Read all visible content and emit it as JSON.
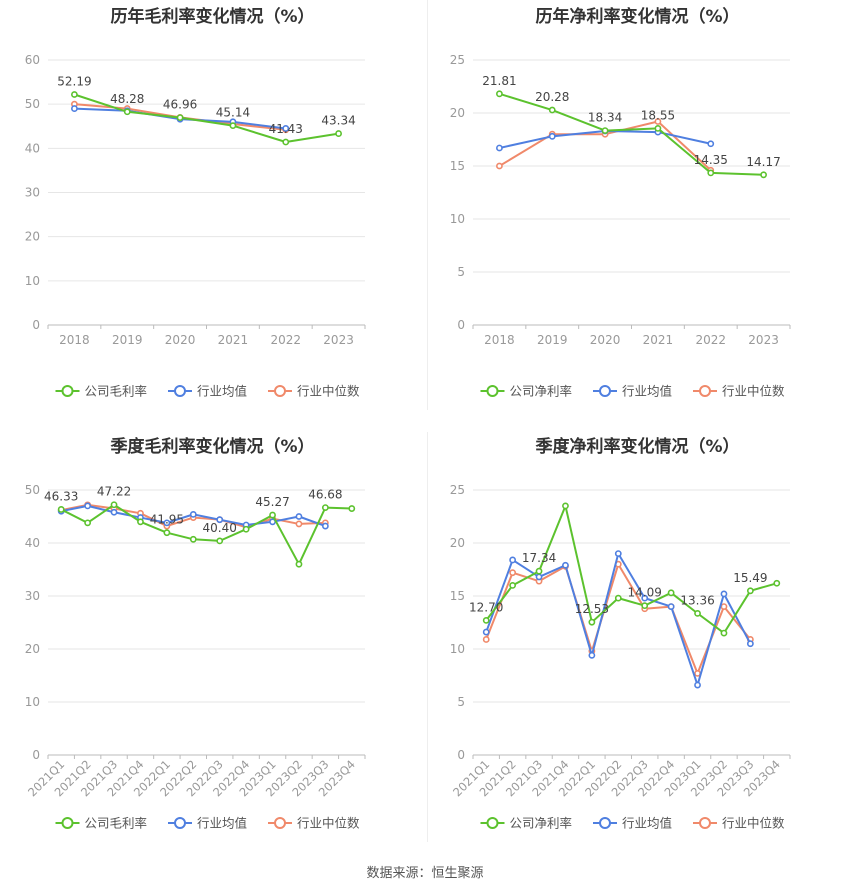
{
  "source": "数据来源：恒生聚源",
  "colors": {
    "company": "#5cc22e",
    "avg": "#4f7fe0",
    "median": "#f0896a",
    "grid": "#e6e6e6",
    "axis": "#999999",
    "label": "#444444"
  },
  "chart_data": [
    {
      "type": "line",
      "title": "历年毛利率变化情况（%）",
      "categories": [
        "2018",
        "2019",
        "2020",
        "2021",
        "2022",
        "2023"
      ],
      "ylim": [
        0,
        60
      ],
      "yticks": [
        0,
        10,
        20,
        30,
        40,
        50,
        60
      ],
      "rotate_labels": false,
      "legend_position": "bottom",
      "series": [
        {
          "name": "公司毛利率",
          "color": "#5cc22e",
          "values": [
            52.19,
            48.28,
            46.96,
            45.14,
            41.43,
            43.34
          ]
        },
        {
          "name": "行业均值",
          "color": "#4f7fe0",
          "values": [
            49.0,
            48.5,
            46.6,
            46.0,
            44.5,
            null
          ]
        },
        {
          "name": "行业中位数",
          "color": "#f0896a",
          "values": [
            50.0,
            49.0,
            47.0,
            45.5,
            44.2,
            null
          ]
        }
      ],
      "data_labels": [
        {
          "index": 0,
          "value": "52.19"
        },
        {
          "index": 1,
          "value": "48.28"
        },
        {
          "index": 2,
          "value": "46.96"
        },
        {
          "index": 3,
          "value": "45.14"
        },
        {
          "index": 4,
          "value": "41.43"
        },
        {
          "index": 5,
          "value": "43.34"
        }
      ]
    },
    {
      "type": "line",
      "title": "历年净利率变化情况（%）",
      "categories": [
        "2018",
        "2019",
        "2020",
        "2021",
        "2022",
        "2023"
      ],
      "ylim": [
        0,
        25
      ],
      "yticks": [
        0,
        5,
        10,
        15,
        20,
        25
      ],
      "rotate_labels": false,
      "legend_position": "bottom",
      "series": [
        {
          "name": "公司净利率",
          "color": "#5cc22e",
          "values": [
            21.81,
            20.28,
            18.34,
            18.55,
            14.35,
            14.17
          ]
        },
        {
          "name": "行业均值",
          "color": "#4f7fe0",
          "values": [
            16.7,
            17.8,
            18.3,
            18.2,
            17.1,
            null
          ]
        },
        {
          "name": "行业中位数",
          "color": "#f0896a",
          "values": [
            15.0,
            18.0,
            18.0,
            19.2,
            14.6,
            null
          ]
        }
      ],
      "data_labels": [
        {
          "index": 0,
          "value": "21.81"
        },
        {
          "index": 1,
          "value": "20.28"
        },
        {
          "index": 2,
          "value": "18.34"
        },
        {
          "index": 3,
          "value": "18.55"
        },
        {
          "index": 4,
          "value": "14.35"
        },
        {
          "index": 5,
          "value": "14.17"
        }
      ]
    },
    {
      "type": "line",
      "title": "季度毛利率变化情况（%）",
      "categories": [
        "2021Q1",
        "2021Q2",
        "2021Q3",
        "2021Q4",
        "2022Q1",
        "2022Q2",
        "2022Q3",
        "2022Q4",
        "2023Q1",
        "2023Q2",
        "2023Q3",
        "2023Q4"
      ],
      "ylim": [
        0,
        50
      ],
      "yticks": [
        0,
        10,
        20,
        30,
        40,
        50
      ],
      "rotate_labels": true,
      "legend_position": "bottom",
      "series": [
        {
          "name": "公司毛利率",
          "color": "#5cc22e",
          "values": [
            46.33,
            43.8,
            47.22,
            44.0,
            41.95,
            40.7,
            40.4,
            42.6,
            45.27,
            36.0,
            46.68,
            46.5
          ]
        },
        {
          "name": "行业均值",
          "color": "#4f7fe0",
          "values": [
            46.0,
            47.0,
            45.8,
            44.8,
            43.8,
            45.4,
            44.4,
            43.4,
            44.0,
            45.0,
            43.2,
            null
          ]
        },
        {
          "name": "行业中位数",
          "color": "#f0896a",
          "values": [
            46.2,
            47.2,
            46.5,
            45.6,
            43.2,
            44.8,
            44.4,
            43.0,
            44.6,
            43.6,
            43.8,
            null
          ]
        }
      ],
      "data_labels": [
        {
          "index": 0,
          "value": "46.33"
        },
        {
          "index": 2,
          "value": "47.22"
        },
        {
          "index": 4,
          "value": "41.95"
        },
        {
          "index": 6,
          "value": "40.40"
        },
        {
          "index": 8,
          "value": "45.27"
        },
        {
          "index": 10,
          "value": "46.68"
        }
      ]
    },
    {
      "type": "line",
      "title": "季度净利率变化情况（%）",
      "categories": [
        "2021Q1",
        "2021Q2",
        "2021Q3",
        "2021Q4",
        "2022Q1",
        "2022Q2",
        "2022Q3",
        "2022Q4",
        "2023Q1",
        "2023Q2",
        "2023Q3",
        "2023Q4"
      ],
      "ylim": [
        0,
        25
      ],
      "yticks": [
        0,
        5,
        10,
        15,
        20,
        25
      ],
      "rotate_labels": true,
      "legend_position": "bottom",
      "series": [
        {
          "name": "公司净利率",
          "color": "#5cc22e",
          "values": [
            12.7,
            16.0,
            17.34,
            23.5,
            12.53,
            14.8,
            14.09,
            15.3,
            13.36,
            11.5,
            15.49,
            16.2
          ]
        },
        {
          "name": "行业均值",
          "color": "#4f7fe0",
          "values": [
            11.6,
            18.4,
            16.8,
            17.9,
            9.4,
            19.0,
            14.8,
            14.0,
            6.6,
            15.2,
            10.5,
            null
          ]
        },
        {
          "name": "行业中位数",
          "color": "#f0896a",
          "values": [
            10.9,
            17.2,
            16.4,
            17.8,
            9.8,
            18.0,
            13.8,
            14.0,
            7.7,
            14.0,
            10.9,
            null
          ]
        }
      ],
      "data_labels": [
        {
          "index": 0,
          "value": "12.70"
        },
        {
          "index": 2,
          "value": "17.34"
        },
        {
          "index": 4,
          "value": "12.53"
        },
        {
          "index": 6,
          "value": "14.09"
        },
        {
          "index": 8,
          "value": "13.36"
        },
        {
          "index": 10,
          "value": "15.49"
        }
      ]
    }
  ]
}
